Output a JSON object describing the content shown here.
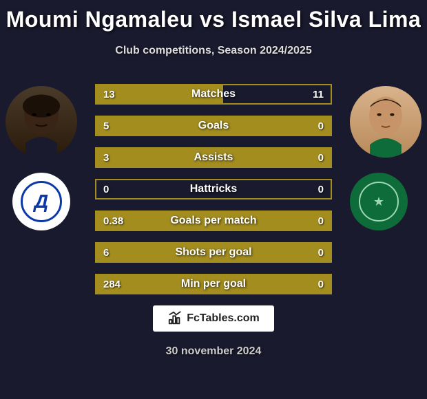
{
  "page": {
    "title": "Moumi Ngamaleu vs Ismael Silva Lima",
    "subtitle": "Club competitions, Season 2024/2025",
    "date": "30 november 2024",
    "brand": "FcTables.com",
    "background_color": "#1a1a2e"
  },
  "players": {
    "left": {
      "name": "Moumi Ngamaleu",
      "club": "Dynamo",
      "club_primary_color": "#0a3aa8",
      "club_bg": "#ffffff"
    },
    "right": {
      "name": "Ismael Silva Lima",
      "club": "Akhmat",
      "club_primary_color": "#0e6b3a",
      "club_accent_color": "#9ed8b3"
    }
  },
  "stats": {
    "bar_color": "#a38d1f",
    "border_color": "#a38d1f",
    "rows": [
      {
        "label": "Matches",
        "left": "13",
        "right": "11",
        "fill_pct": 54
      },
      {
        "label": "Goals",
        "left": "5",
        "right": "0",
        "fill_pct": 100
      },
      {
        "label": "Assists",
        "left": "3",
        "right": "0",
        "fill_pct": 100
      },
      {
        "label": "Hattricks",
        "left": "0",
        "right": "0",
        "fill_pct": 0
      },
      {
        "label": "Goals per match",
        "left": "0.38",
        "right": "0",
        "fill_pct": 100
      },
      {
        "label": "Shots per goal",
        "left": "6",
        "right": "0",
        "fill_pct": 100
      },
      {
        "label": "Min per goal",
        "left": "284",
        "right": "0",
        "fill_pct": 100
      }
    ]
  },
  "typography": {
    "title_fontsize": 32,
    "subtitle_fontsize": 16,
    "stat_label_fontsize": 16,
    "stat_value_fontsize": 15
  }
}
